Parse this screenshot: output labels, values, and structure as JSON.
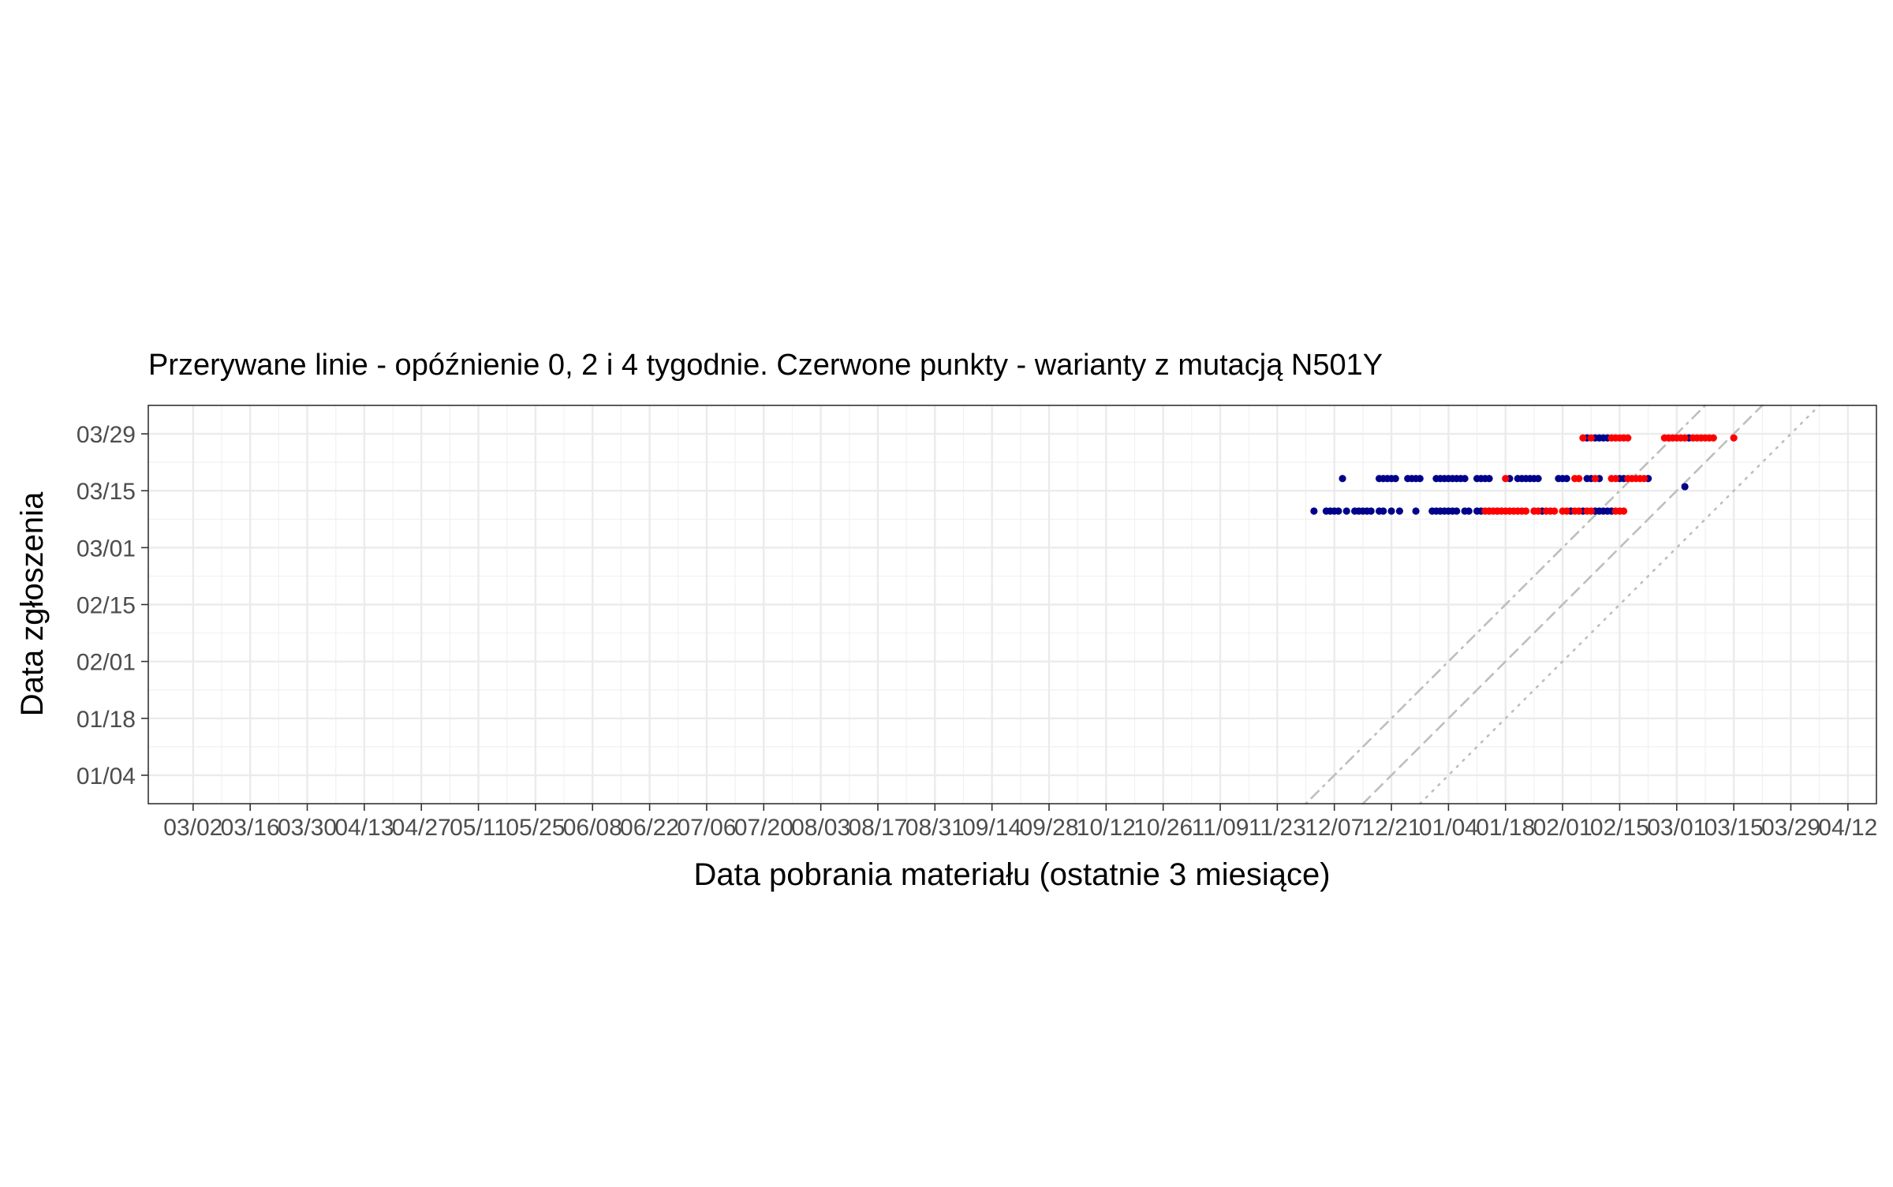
{
  "chart_data": {
    "type": "scatter",
    "title": "Przerywane linie - opóźnienie 0, 2 i 4 tygodnie. Czerwone punkty - warianty z mutacją N501Y",
    "xlabel": "Data pobrania materiału (ostatnie 3 miesiące)",
    "ylabel": "Data zgłoszenia",
    "x_ticks": [
      "2020-03-02",
      "2020-03-16",
      "2020-03-30",
      "2020-04-13",
      "2020-04-27",
      "2020-05-11",
      "2020-05-25",
      "2020-06-08",
      "2020-06-22",
      "2020-07-06",
      "2020-07-20",
      "2020-08-03",
      "2020-08-17",
      "2020-08-31",
      "2020-09-14",
      "2020-09-28",
      "2020-10-12",
      "2020-10-26",
      "2020-11-09",
      "2020-11-23",
      "2020-12-07",
      "2020-12-21",
      "2021-01-04",
      "2021-01-18",
      "2021-02-01",
      "2021-02-15",
      "2021-03-01",
      "2021-03-15",
      "2021-03-29",
      "2021-04-12"
    ],
    "x_tick_labels": [
      "03/02",
      "03/16",
      "03/30",
      "04/13",
      "04/27",
      "05/11",
      "05/25",
      "06/08",
      "06/22",
      "07/06",
      "07/20",
      "08/03",
      "08/17",
      "08/31",
      "09/14",
      "09/28",
      "10/12",
      "10/26",
      "11/09",
      "11/23",
      "12/07",
      "12/21",
      "01/04",
      "01/18",
      "02/01",
      "02/15",
      "03/01",
      "03/15",
      "03/29",
      "04/12"
    ],
    "y_ticks": [
      "2021-01-04",
      "2021-01-18",
      "2021-02-01",
      "2021-02-15",
      "2021-03-01",
      "2021-03-15",
      "2021-03-29"
    ],
    "y_tick_labels": [
      "01/04",
      "01/18",
      "02/01",
      "02/15",
      "03/01",
      "03/15",
      "03/29"
    ],
    "xlim": [
      "2020-02-20",
      "2021-04-19"
    ],
    "ylim": [
      "2020-12-28",
      "2021-04-05"
    ],
    "grid": true,
    "legend": "none",
    "reference_lines": [
      {
        "delay_weeks": 0,
        "style": "dotted",
        "color": "#bebebe"
      },
      {
        "delay_weeks": 2,
        "style": "dashed",
        "color": "#bebebe"
      },
      {
        "delay_weeks": 4,
        "style": "dotdash",
        "color": "#bebebe"
      }
    ],
    "series": [
      {
        "color": "#00008b",
        "points": [
          [
            "2020-12-02",
            "2021-03-10"
          ],
          [
            "2020-12-05",
            "2021-03-10"
          ],
          [
            "2020-12-06",
            "2021-03-10"
          ],
          [
            "2020-12-07",
            "2021-03-10"
          ],
          [
            "2020-12-08",
            "2021-03-10"
          ],
          [
            "2020-12-10",
            "2021-03-10"
          ],
          [
            "2020-12-12",
            "2021-03-10"
          ],
          [
            "2020-12-13",
            "2021-03-10"
          ],
          [
            "2020-12-14",
            "2021-03-10"
          ],
          [
            "2020-12-15",
            "2021-03-10"
          ],
          [
            "2020-12-16",
            "2021-03-10"
          ],
          [
            "2020-12-18",
            "2021-03-10"
          ],
          [
            "2020-12-19",
            "2021-03-10"
          ],
          [
            "2020-12-21",
            "2021-03-10"
          ],
          [
            "2020-12-23",
            "2021-03-10"
          ],
          [
            "2020-12-27",
            "2021-03-10"
          ],
          [
            "2020-12-31",
            "2021-03-10"
          ],
          [
            "2021-01-01",
            "2021-03-10"
          ],
          [
            "2021-01-02",
            "2021-03-10"
          ],
          [
            "2021-01-03",
            "2021-03-10"
          ],
          [
            "2021-01-04",
            "2021-03-10"
          ],
          [
            "2021-01-05",
            "2021-03-10"
          ],
          [
            "2021-01-06",
            "2021-03-10"
          ],
          [
            "2021-01-08",
            "2021-03-10"
          ],
          [
            "2021-01-09",
            "2021-03-10"
          ],
          [
            "2021-01-11",
            "2021-03-10"
          ],
          [
            "2021-01-12",
            "2021-03-10"
          ],
          [
            "2021-01-14",
            "2021-03-10"
          ],
          [
            "2021-01-16",
            "2021-03-10"
          ],
          [
            "2021-01-25",
            "2021-03-10"
          ],
          [
            "2021-01-27",
            "2021-03-10"
          ],
          [
            "2021-02-03",
            "2021-03-10"
          ],
          [
            "2021-02-06",
            "2021-03-10"
          ],
          [
            "2021-02-09",
            "2021-03-10"
          ],
          [
            "2021-02-10",
            "2021-03-10"
          ],
          [
            "2021-02-11",
            "2021-03-10"
          ],
          [
            "2021-02-12",
            "2021-03-10"
          ],
          [
            "2021-02-13",
            "2021-03-10"
          ],
          [
            "2020-12-09",
            "2021-03-18"
          ],
          [
            "2020-12-18",
            "2021-03-18"
          ],
          [
            "2020-12-19",
            "2021-03-18"
          ],
          [
            "2020-12-20",
            "2021-03-18"
          ],
          [
            "2020-12-21",
            "2021-03-18"
          ],
          [
            "2020-12-22",
            "2021-03-18"
          ],
          [
            "2020-12-25",
            "2021-03-18"
          ],
          [
            "2020-12-26",
            "2021-03-18"
          ],
          [
            "2020-12-27",
            "2021-03-18"
          ],
          [
            "2020-12-28",
            "2021-03-18"
          ],
          [
            "2021-01-01",
            "2021-03-18"
          ],
          [
            "2021-01-02",
            "2021-03-18"
          ],
          [
            "2021-01-03",
            "2021-03-18"
          ],
          [
            "2021-01-04",
            "2021-03-18"
          ],
          [
            "2021-01-05",
            "2021-03-18"
          ],
          [
            "2021-01-06",
            "2021-03-18"
          ],
          [
            "2021-01-07",
            "2021-03-18"
          ],
          [
            "2021-01-08",
            "2021-03-18"
          ],
          [
            "2021-01-11",
            "2021-03-18"
          ],
          [
            "2021-01-12",
            "2021-03-18"
          ],
          [
            "2021-01-13",
            "2021-03-18"
          ],
          [
            "2021-01-14",
            "2021-03-18"
          ],
          [
            "2021-01-19",
            "2021-03-18"
          ],
          [
            "2021-01-21",
            "2021-03-18"
          ],
          [
            "2021-01-22",
            "2021-03-18"
          ],
          [
            "2021-01-23",
            "2021-03-18"
          ],
          [
            "2021-01-24",
            "2021-03-18"
          ],
          [
            "2021-01-25",
            "2021-03-18"
          ],
          [
            "2021-01-26",
            "2021-03-18"
          ],
          [
            "2021-01-31",
            "2021-03-18"
          ],
          [
            "2021-02-01",
            "2021-03-18"
          ],
          [
            "2021-02-02",
            "2021-03-18"
          ],
          [
            "2021-02-07",
            "2021-03-18"
          ],
          [
            "2021-02-08",
            "2021-03-18"
          ],
          [
            "2021-02-10",
            "2021-03-18"
          ],
          [
            "2021-02-15",
            "2021-03-18"
          ],
          [
            "2021-02-16",
            "2021-03-18"
          ],
          [
            "2021-02-22",
            "2021-03-18"
          ],
          [
            "2021-02-07",
            "2021-03-28"
          ],
          [
            "2021-02-09",
            "2021-03-28"
          ],
          [
            "2021-02-10",
            "2021-03-28"
          ],
          [
            "2021-02-11",
            "2021-03-28"
          ],
          [
            "2021-02-12",
            "2021-03-28"
          ],
          [
            "2021-03-04",
            "2021-03-28"
          ],
          [
            "2021-03-03",
            "2021-03-16"
          ]
        ]
      },
      {
        "color": "#ff0000",
        "points": [
          [
            "2021-01-13",
            "2021-03-10"
          ],
          [
            "2021-01-14",
            "2021-03-10"
          ],
          [
            "2021-01-15",
            "2021-03-10"
          ],
          [
            "2021-01-16",
            "2021-03-10"
          ],
          [
            "2021-01-17",
            "2021-03-10"
          ],
          [
            "2021-01-18",
            "2021-03-10"
          ],
          [
            "2021-01-19",
            "2021-03-10"
          ],
          [
            "2021-01-20",
            "2021-03-10"
          ],
          [
            "2021-01-21",
            "2021-03-10"
          ],
          [
            "2021-01-22",
            "2021-03-10"
          ],
          [
            "2021-01-23",
            "2021-03-10"
          ],
          [
            "2021-01-25",
            "2021-03-10"
          ],
          [
            "2021-01-26",
            "2021-03-10"
          ],
          [
            "2021-01-28",
            "2021-03-10"
          ],
          [
            "2021-01-29",
            "2021-03-10"
          ],
          [
            "2021-01-30",
            "2021-03-10"
          ],
          [
            "2021-02-01",
            "2021-03-10"
          ],
          [
            "2021-02-02",
            "2021-03-10"
          ],
          [
            "2021-02-04",
            "2021-03-10"
          ],
          [
            "2021-02-05",
            "2021-03-10"
          ],
          [
            "2021-02-07",
            "2021-03-10"
          ],
          [
            "2021-02-08",
            "2021-03-10"
          ],
          [
            "2021-02-14",
            "2021-03-10"
          ],
          [
            "2021-02-15",
            "2021-03-10"
          ],
          [
            "2021-02-16",
            "2021-03-10"
          ],
          [
            "2021-01-18",
            "2021-03-18"
          ],
          [
            "2021-02-04",
            "2021-03-18"
          ],
          [
            "2021-02-05",
            "2021-03-18"
          ],
          [
            "2021-02-09",
            "2021-03-18"
          ],
          [
            "2021-02-13",
            "2021-03-18"
          ],
          [
            "2021-02-14",
            "2021-03-18"
          ],
          [
            "2021-02-17",
            "2021-03-18"
          ],
          [
            "2021-02-18",
            "2021-03-18"
          ],
          [
            "2021-02-19",
            "2021-03-18"
          ],
          [
            "2021-02-20",
            "2021-03-18"
          ],
          [
            "2021-02-21",
            "2021-03-18"
          ],
          [
            "2021-02-06",
            "2021-03-28"
          ],
          [
            "2021-02-08",
            "2021-03-28"
          ],
          [
            "2021-02-13",
            "2021-03-28"
          ],
          [
            "2021-02-14",
            "2021-03-28"
          ],
          [
            "2021-02-15",
            "2021-03-28"
          ],
          [
            "2021-02-16",
            "2021-03-28"
          ],
          [
            "2021-02-17",
            "2021-03-28"
          ],
          [
            "2021-02-26",
            "2021-03-28"
          ],
          [
            "2021-02-27",
            "2021-03-28"
          ],
          [
            "2021-02-28",
            "2021-03-28"
          ],
          [
            "2021-03-01",
            "2021-03-28"
          ],
          [
            "2021-03-02",
            "2021-03-28"
          ],
          [
            "2021-03-03",
            "2021-03-28"
          ],
          [
            "2021-03-05",
            "2021-03-28"
          ],
          [
            "2021-03-06",
            "2021-03-28"
          ],
          [
            "2021-03-07",
            "2021-03-28"
          ],
          [
            "2021-03-08",
            "2021-03-28"
          ],
          [
            "2021-03-09",
            "2021-03-28"
          ],
          [
            "2021-03-10",
            "2021-03-28"
          ],
          [
            "2021-03-15",
            "2021-03-28"
          ]
        ]
      }
    ]
  }
}
